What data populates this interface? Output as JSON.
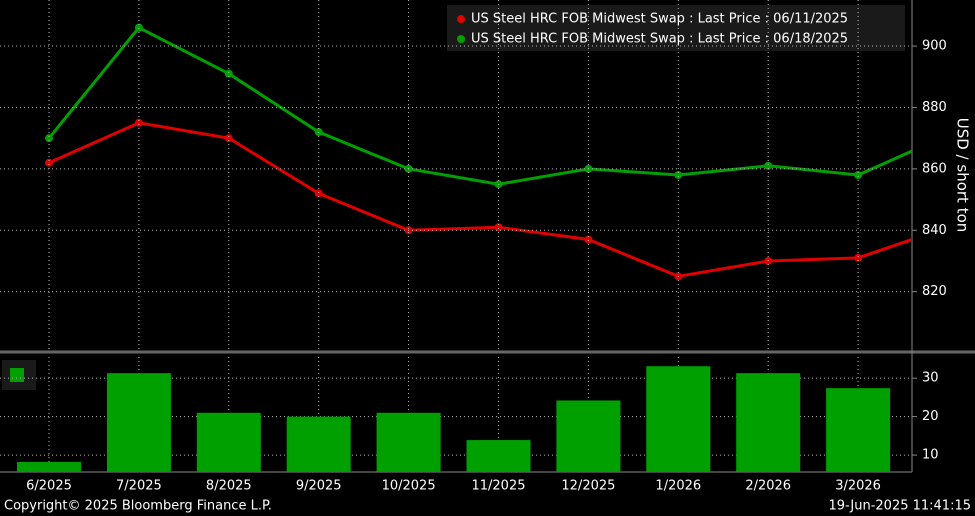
{
  "chart_data": [
    {
      "type": "line",
      "categories": [
        "6/2025",
        "7/2025",
        "8/2025",
        "9/2025",
        "10/2025",
        "11/2025",
        "12/2025",
        "1/2026",
        "2/2026",
        "3/2026",
        null
      ],
      "series": [
        {
          "name": "US Steel HRC FOB Midwest Swap : Last Price : 06/11/2025",
          "color": "#e00000",
          "values": [
            862,
            875,
            870,
            852,
            840,
            841,
            837,
            825,
            830,
            831,
            841
          ]
        },
        {
          "name": "US Steel HRC FOB Midwest Swap : Last Price : 06/18/2025",
          "color": "#00a000",
          "values": [
            870,
            906,
            891,
            872,
            860,
            855,
            860,
            858,
            861,
            858,
            871
          ]
        }
      ],
      "y_label": "USD / short ton",
      "ylim": [
        801,
        915
      ],
      "yticks": [
        820,
        840,
        860,
        880,
        900
      ],
      "grid": true,
      "legend": "top-right"
    },
    {
      "type": "bar",
      "color": "#00a000",
      "values": [
        8.2,
        31.3,
        21,
        20,
        21,
        13.9,
        24.2,
        33.1,
        31.3,
        27.4,
        null
      ],
      "ylim": [
        5.6,
        35.5
      ],
      "yticks": [
        10,
        20,
        30
      ],
      "grid": true
    }
  ],
  "footer": {
    "copyright": "Copyright© 2025 Bloomberg Finance L.P.",
    "timestamp": "19-Jun-2025 11:41:15"
  }
}
